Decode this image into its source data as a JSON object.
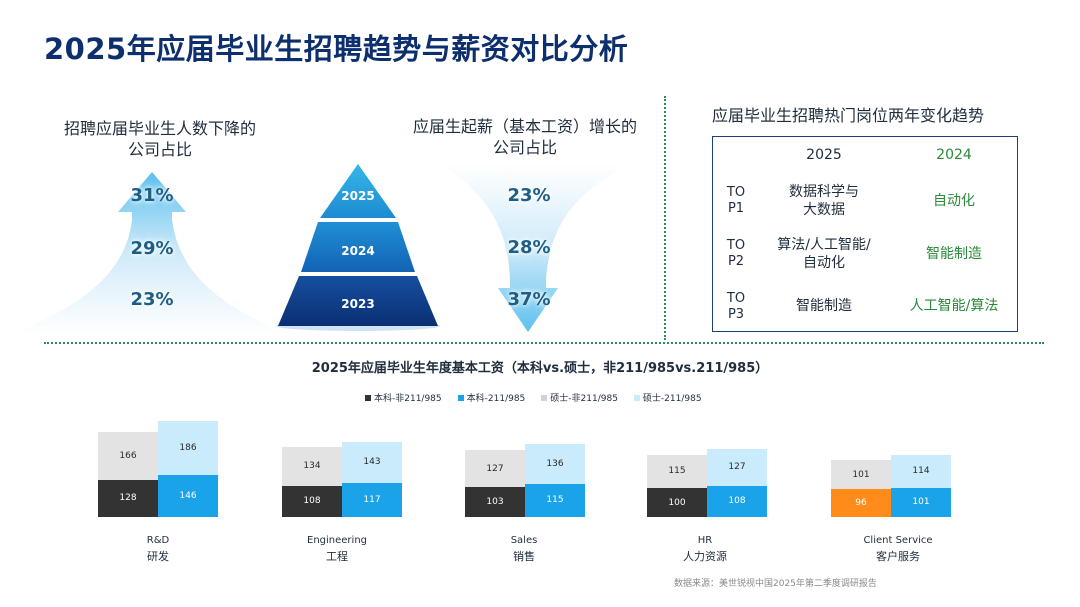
{
  "title": "2025年应届毕业生招聘趋势与薪资对比分析",
  "left_panel": {
    "caption_line1": "招聘应届毕业生人数下降的",
    "caption_line2": "公司占比",
    "values": [
      "31%",
      "29%",
      "23%"
    ]
  },
  "pyramid": {
    "years": [
      "2025",
      "2024",
      "2023"
    ]
  },
  "right_panel": {
    "caption_line1": "应届生起薪（基本工资）增长的",
    "caption_line2": "公司占比",
    "values": [
      "23%",
      "28%",
      "37%"
    ]
  },
  "table": {
    "title": "应届毕业生招聘热门岗位两年变化趋势",
    "col_2025": "2025",
    "col_2024": "2024",
    "rows": [
      {
        "label_a": "TO",
        "label_b": "P1",
        "y2025_a": "数据科学与",
        "y2025_b": "大数据",
        "y2024": "自动化"
      },
      {
        "label_a": "TO",
        "label_b": "P2",
        "y2025_a": "算法/人工智能/",
        "y2025_b": "自动化",
        "y2024": "智能制造"
      },
      {
        "label_a": "TO",
        "label_b": "P3",
        "y2025_a": "智能制造",
        "y2025_b": "",
        "y2024": "人工智能/算法"
      }
    ]
  },
  "chart_data": {
    "type": "bar",
    "title": "2025年应届毕业生年度基本工资（本科vs.硕士，非211/985vs.211/985）",
    "categories": [
      "R&D",
      "Engineering",
      "Sales",
      "HR",
      "Client Service"
    ],
    "categories_cn": [
      "研发",
      "工程",
      "销售",
      "人力资源",
      "客户服务"
    ],
    "series": [
      {
        "name": "本科-非211/985",
        "values": [
          128,
          108,
          103,
          100,
          96
        ],
        "color": "#333333"
      },
      {
        "name": "本科-211/985",
        "values": [
          146,
          117,
          115,
          108,
          101
        ],
        "color": "#1aa3e8"
      },
      {
        "name": "硕士-非211/985",
        "values": [
          166,
          134,
          127,
          115,
          101
        ],
        "color": "#e3e3e3"
      },
      {
        "name": "硕士-211/985",
        "values": [
          186,
          143,
          136,
          127,
          114
        ],
        "color": "#c9ebfb"
      }
    ],
    "highlight": {
      "category_index": 4,
      "series_index": 0,
      "color": "#ff8c1a"
    },
    "legend_position": "top"
  },
  "source": "数据来源：美世锐视中国2025年第二季度调研报告"
}
